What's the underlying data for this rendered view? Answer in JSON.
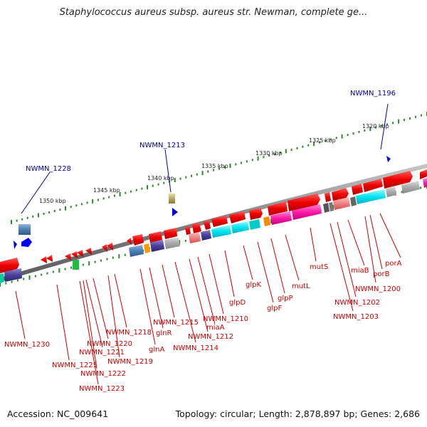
{
  "title": "Staphylococcus aureus subsp. aureus str. Newman, complete ge...",
  "accession": "Accession: NC_009641",
  "topology": "Topology: circular; Length: 2,878,897 bp; Genes: 2,686",
  "ruler": [
    {
      "label": "1320 kbp"
    },
    {
      "label": "1325 kbp"
    },
    {
      "label": "1330 kbp"
    },
    {
      "label": "1335 kbp"
    },
    {
      "label": "1340 kbp"
    },
    {
      "label": "1345 kbp"
    },
    {
      "label": "1350 kbp"
    }
  ],
  "outer_labels": [
    {
      "text": "NWMN_1196"
    },
    {
      "text": "NWMN_1213"
    },
    {
      "text": "NWMN_1228"
    }
  ],
  "gene_labels": [
    {
      "text": "porA"
    },
    {
      "text": "porB"
    },
    {
      "text": "NWMN_1200"
    },
    {
      "text": "miaB"
    },
    {
      "text": "NWMN_1202"
    },
    {
      "text": "NWMN_1203"
    },
    {
      "text": "mutS"
    },
    {
      "text": "mutL"
    },
    {
      "text": "glpP"
    },
    {
      "text": "glpF"
    },
    {
      "text": "glpK"
    },
    {
      "text": "glpD"
    },
    {
      "text": "NWMN_1210"
    },
    {
      "text": "miaA"
    },
    {
      "text": "NWMN_1212"
    },
    {
      "text": "NWMN_1214"
    },
    {
      "text": "NWMN_1215"
    },
    {
      "text": "glnR"
    },
    {
      "text": "glnA"
    },
    {
      "text": "NWMN_1218"
    },
    {
      "text": "NWMN_1219"
    },
    {
      "text": "NWMN_1220"
    },
    {
      "text": "NWMN_1221"
    },
    {
      "text": "NWMN_1222"
    },
    {
      "text": "NWMN_1223"
    },
    {
      "text": "NWMN_1225"
    },
    {
      "text": "NWMN_1230"
    }
  ],
  "colors": {
    "gene_red": "#ee0000",
    "backbone": "#888888",
    "ruler": "#2a8a2a",
    "label_red": "#cc0000",
    "label_blue": "#0000aa"
  }
}
